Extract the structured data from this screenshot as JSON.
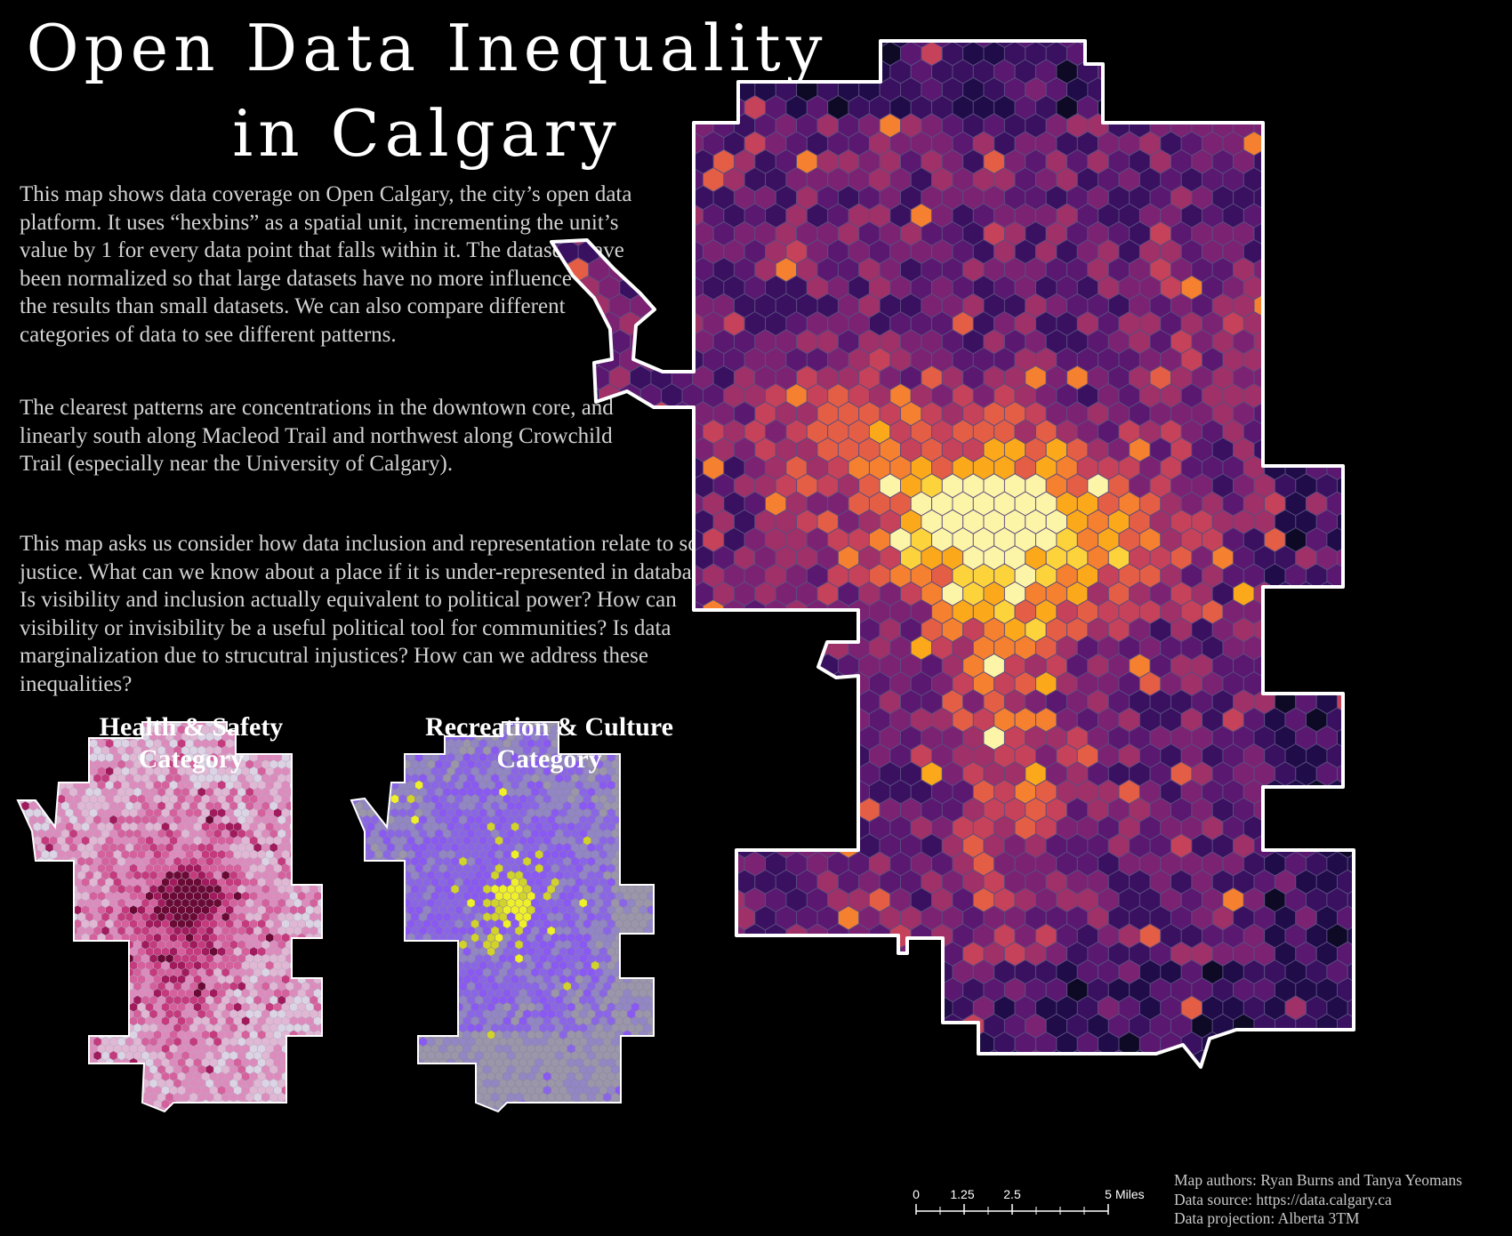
{
  "title": {
    "line1": "Open Data Inequality",
    "line2": "in Calgary"
  },
  "description": {
    "paragraph1": "This map shows data coverage on Open Calgary, the city’s open data platform. It uses “hexbins” as a spatial unit, incrementing the unit’s value by 1 for every data point that falls within it. The datasets have been normalized so that large datasets have no more influence over the results than small datasets. We can also compare different categories of data to see different patterns.",
    "paragraph2": "The clearest patterns are concentrations in the downtown core, and linearly south along Macleod Trail and northwest along Crowchild Trail (especially near the University of Calgary).",
    "paragraph3": "This map asks us consider how data inclusion and representation relate to social justice. What can we know about a place if it is under-represented in databases? Is visibility and inclusion actually equivalent to political power? How can visibility or invisibility be a useful political tool for communities? Is data marginalization due to strucutral injustices? How can we address these inequalities?"
  },
  "main_map": {
    "city": "Calgary",
    "color_ramp": [
      "#0e0a26",
      "#1f0c48",
      "#3a1160",
      "#5a1870",
      "#7c2272",
      "#a03068",
      "#c6425a",
      "#e45e46",
      "#f48030",
      "#fba91a",
      "#fcd33b",
      "#fcf4a6"
    ],
    "hotspots": [
      {
        "label": "downtown core",
        "peak": 1.0
      },
      {
        "label": "Macleod Trail (south)",
        "peak": 0.55
      },
      {
        "label": "Crowchild Trail (northwest)",
        "peak": 0.5
      }
    ]
  },
  "mini_maps": [
    {
      "title_line1": "Health & Safety",
      "title_line2": "Category",
      "color_ramp": [
        "#dcd4e4",
        "#e0b8d4",
        "#dc8cbc",
        "#d4609c",
        "#c43a7c",
        "#a01a5c",
        "#6a0a34"
      ]
    },
    {
      "title_line1": "Recreation & Culture",
      "title_line2": "Category",
      "color_ramp": [
        "#9c96aa",
        "#9286c4",
        "#8a66e6",
        "#8a58f2",
        "#d2d22c",
        "#f0f02a"
      ]
    }
  ],
  "scale_bar": {
    "ticks": [
      "0",
      "1.25",
      "2.5",
      "5"
    ],
    "unit": "Miles"
  },
  "credits": {
    "authors": "Map authors: Ryan Burns and Tanya Yeomans",
    "source": "Data source: https://data.calgary.ca",
    "projection": "Data projection: Alberta 3TM"
  },
  "colors": {
    "background": "#000000",
    "text": "#ffffff",
    "body_text": "#d2d2d2",
    "boundary": "#ffffff"
  }
}
